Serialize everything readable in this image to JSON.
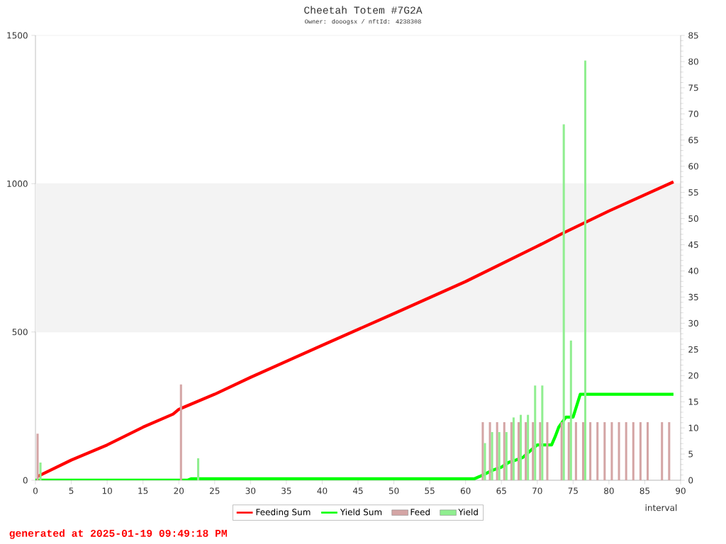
{
  "chart_data": {
    "type": "bar",
    "title": "Cheetah Totem #7G2A",
    "subtitle": "Owner: dooogsx / nftId: 4238308",
    "xlabel": "interval",
    "annotations": [
      "generated at 2025-01-19 09:49:18 PM"
    ],
    "xlim": [
      0,
      90
    ],
    "xticks": [
      0,
      5,
      10,
      15,
      20,
      25,
      30,
      35,
      40,
      45,
      50,
      55,
      60,
      65,
      70,
      75,
      80,
      85,
      90
    ],
    "ylim": [
      0,
      1500
    ],
    "yticks": [
      0,
      500,
      1000,
      1500
    ],
    "y2lim": [
      0,
      85
    ],
    "y2ticks": [
      0,
      5,
      10,
      15,
      20,
      25,
      30,
      35,
      40,
      45,
      50,
      55,
      60,
      65,
      70,
      75,
      80,
      85
    ],
    "grid": "y",
    "legend": "bottom",
    "bands": [
      {
        "axis": "y",
        "from": 500,
        "to": 1000,
        "color": "#f3f3f3"
      }
    ],
    "series": [
      {
        "name": "Feed",
        "axis": "y2",
        "color": "#d4a5a5",
        "x": [
          0.3,
          20.3,
          62.4,
          63.4,
          64.4,
          65.4,
          66.4,
          67.4,
          68.4,
          69.4,
          70.4,
          71.4,
          73.4,
          74.4,
          75.4,
          76.4,
          77.4,
          78.4,
          79.4,
          80.4,
          81.4,
          82.4,
          83.4,
          84.4,
          85.4,
          87.4,
          88.4
        ],
        "values": [
          8.9,
          18.3,
          11.1,
          11.1,
          11.1,
          11.1,
          11.1,
          11.1,
          11.1,
          11.1,
          11.1,
          11.1,
          11.1,
          11.1,
          11.1,
          11.1,
          11.1,
          11.1,
          11.1,
          11.1,
          11.1,
          11.1,
          11.1,
          11.1,
          11.1,
          11.1,
          11.1
        ]
      },
      {
        "name": "Yield",
        "axis": "y2",
        "color": "#90ee90",
        "x": [
          0.7,
          22.7,
          62.7,
          63.7,
          64.7,
          65.7,
          66.7,
          67.7,
          68.7,
          69.7,
          70.7,
          73.7,
          74.7,
          76.7
        ],
        "values": [
          3.4,
          4.2,
          7.1,
          9.2,
          9.2,
          9.2,
          12,
          12.5,
          12.5,
          18.1,
          18.1,
          68,
          26.7,
          80.2
        ]
      },
      {
        "name": "Feeding Sum",
        "type": "line",
        "axis": "y",
        "color": "#ff0000",
        "x": [
          0.3,
          5,
          10,
          15,
          19.2,
          20,
          25,
          30,
          40,
          50,
          60,
          70,
          73.5,
          80,
          89
        ],
        "values": [
          13,
          68,
          119,
          179,
          223,
          239,
          290,
          347,
          455,
          562,
          670,
          789,
          832,
          908,
          1006
        ]
      },
      {
        "name": "Yield Sum",
        "type": "line",
        "axis": "y",
        "color": "#00ff00",
        "x": [
          0,
          21.2,
          21.7,
          61.2,
          62,
          63.8,
          65,
          66,
          67,
          68,
          69,
          70,
          72,
          72.5,
          73,
          74,
          75,
          76,
          89
        ],
        "values": [
          0,
          0,
          5,
          5,
          13,
          34,
          44,
          60,
          68,
          77,
          99,
          119,
          119,
          147,
          179,
          213,
          213,
          290,
          290
        ]
      }
    ]
  }
}
